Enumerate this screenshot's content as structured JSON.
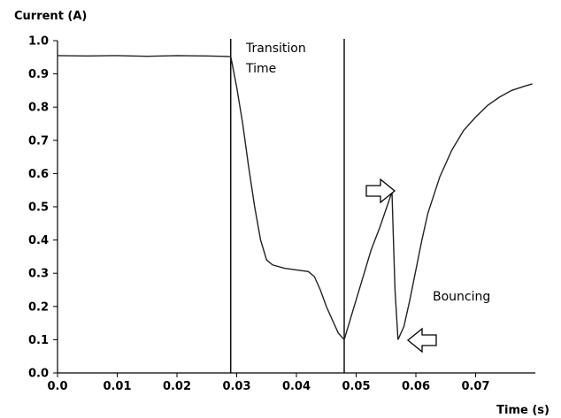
{
  "chart_data": {
    "type": "line",
    "ylabel": "Current (A)",
    "xlabel": "Time (s)",
    "xlim": [
      0,
      0.08
    ],
    "ylim": [
      0,
      1.0
    ],
    "x_ticks": [
      "0.0",
      "0.01",
      "0.02",
      "0.03",
      "0.04",
      "0.05",
      "0.06",
      "0.07"
    ],
    "x_tick_values": [
      0,
      0.01,
      0.02,
      0.03,
      0.04,
      0.05,
      0.06,
      0.07
    ],
    "y_ticks": [
      "0.0",
      "0.1",
      "0.2",
      "0.3",
      "0.4",
      "0.5",
      "0.6",
      "0.7",
      "0.8",
      "0.9",
      "1.0"
    ],
    "y_tick_values": [
      0,
      0.1,
      0.2,
      0.3,
      0.4,
      0.5,
      0.6,
      0.7,
      0.8,
      0.9,
      1.0
    ],
    "grid": false,
    "series": [
      {
        "x": [
          0,
          0.005,
          0.01,
          0.015,
          0.02,
          0.025,
          0.029,
          0.03,
          0.031,
          0.032,
          0.033,
          0.034,
          0.035,
          0.036,
          0.038,
          0.04,
          0.042,
          0.043,
          0.044,
          0.045,
          0.046,
          0.047,
          0.048,
          0.0495,
          0.051,
          0.0525,
          0.054,
          0.056,
          0.0562,
          0.0565,
          0.057,
          0.058,
          0.059,
          0.06,
          0.061,
          0.062,
          0.064,
          0.066,
          0.068,
          0.07,
          0.072,
          0.074,
          0.076,
          0.078,
          0.0795
        ],
        "y": [
          0.955,
          0.954,
          0.955,
          0.953,
          0.955,
          0.954,
          0.952,
          0.86,
          0.75,
          0.62,
          0.5,
          0.4,
          0.34,
          0.325,
          0.315,
          0.31,
          0.305,
          0.29,
          0.25,
          0.2,
          0.16,
          0.12,
          0.1,
          0.19,
          0.28,
          0.37,
          0.44,
          0.545,
          0.42,
          0.25,
          0.1,
          0.14,
          0.22,
          0.31,
          0.4,
          0.48,
          0.59,
          0.67,
          0.73,
          0.77,
          0.805,
          0.83,
          0.85,
          0.862,
          0.87
        ]
      }
    ],
    "vertical_lines": [
      0.029,
      0.048
    ],
    "annotations": {
      "transition_line1": "Transition",
      "transition_line2": "Time",
      "bouncing": "Bouncing"
    }
  }
}
